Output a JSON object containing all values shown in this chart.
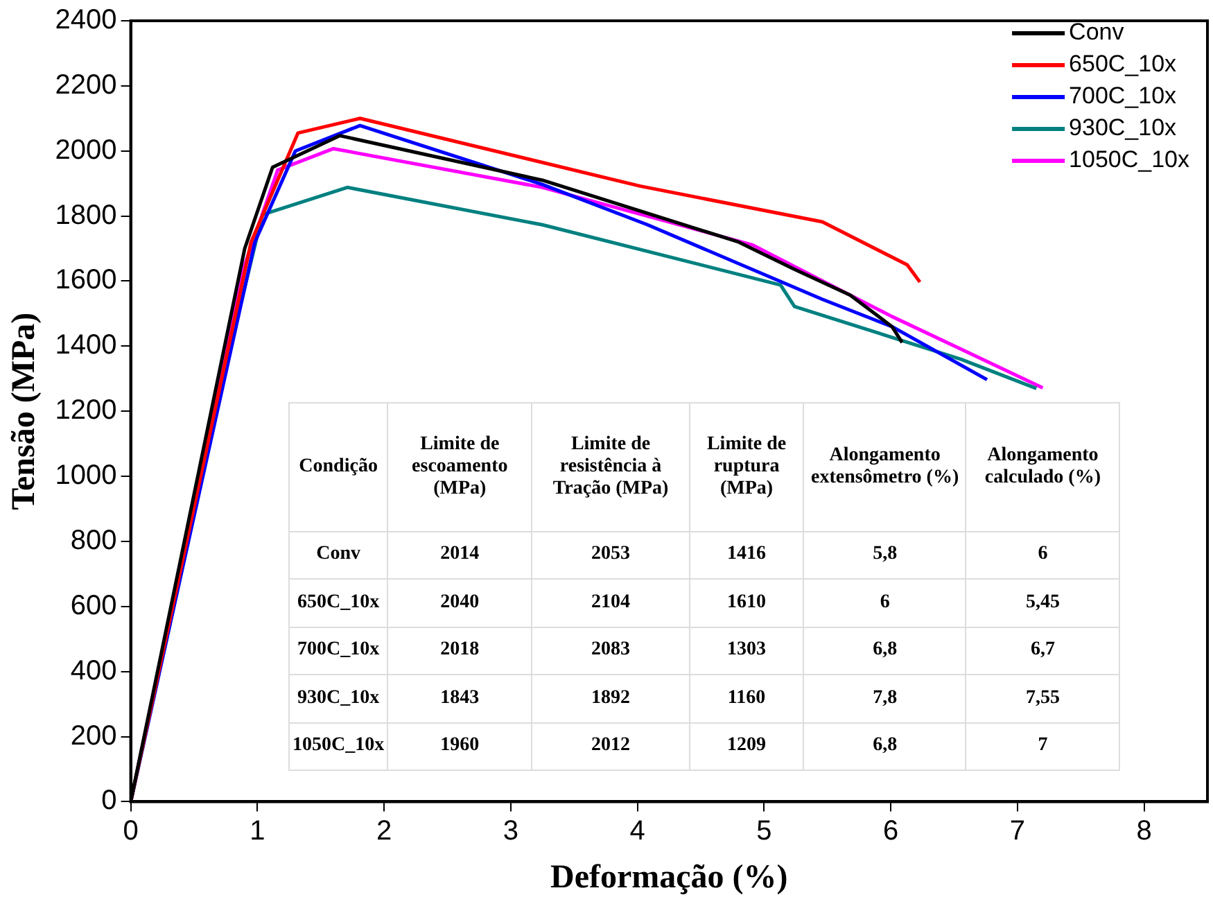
{
  "chart_data": {
    "type": "line",
    "xlabel": "Deformação (%)",
    "ylabel": "Tensão (MPa)",
    "xlim": [
      0,
      8.5
    ],
    "xticks": [
      0,
      1,
      2,
      3,
      4,
      5,
      6,
      7,
      8
    ],
    "ylim": [
      0,
      2400
    ],
    "yticks": [
      0,
      200,
      400,
      600,
      800,
      1000,
      1200,
      1400,
      1600,
      1800,
      2000,
      2200,
      2400
    ],
    "grid": false,
    "legend": "top right",
    "marker": "none",
    "line_style": "solid",
    "series": [
      {
        "name": "Conv",
        "color": "#000000",
        "x": [
          0,
          0.9,
          1.12,
          1.65,
          3.25,
          4.8,
          5.24,
          5.68,
          6.01,
          6.09
        ],
        "values": [
          0,
          1700,
          1950,
          2047,
          1910,
          1720,
          1636,
          1557,
          1460,
          1411
        ]
      },
      {
        "name": "650C_10x",
        "color": "#ff0000",
        "x": [
          0,
          0.95,
          1.32,
          1.81,
          4.02,
          5.46,
          6.13,
          6.23
        ],
        "values": [
          0,
          1720,
          2055,
          2100,
          1892,
          1782,
          1650,
          1597
        ]
      },
      {
        "name": "700C_10x",
        "color": "#0000ff",
        "x": [
          0,
          0.98,
          1.3,
          1.81,
          3.25,
          4.08,
          5.46,
          6.01,
          6.76
        ],
        "values": [
          0,
          1720,
          2000,
          2078,
          1897,
          1773,
          1544,
          1460,
          1297
        ]
      },
      {
        "name": "930C_10x",
        "color": "#008080",
        "x": [
          0,
          0.85,
          1.04,
          1.71,
          3.25,
          5.13,
          5.24,
          6.56,
          7.15
        ],
        "values": [
          0,
          1500,
          1804,
          1888,
          1773,
          1588,
          1522,
          1359,
          1270
        ]
      },
      {
        "name": "1050C_10x",
        "color": "#ff00ff",
        "x": [
          0,
          0.9,
          1.16,
          1.6,
          3.25,
          4.91,
          6.01,
          7.2
        ],
        "values": [
          0,
          1650,
          1941,
          2007,
          1888,
          1711,
          1491,
          1272
        ]
      }
    ],
    "annotations": [
      "Condição",
      "Limite de escoamento (MPa)",
      "Limite de resistência à Tração (MPa)",
      "Limite de ruptura (MPa)",
      "Alongamento extensômetro (%)",
      "Alongamento calculado (%)",
      "Conv",
      "2014",
      "2053",
      "1416",
      "5,8",
      "6",
      "650C_10x",
      "2040",
      "2104",
      "1610",
      "6",
      "5,45",
      "700C_10x",
      "2018",
      "2083",
      "1303",
      "6,8",
      "6,7",
      "930C_10x",
      "1843",
      "1892",
      "1160",
      "7,8",
      "7,55",
      "1050C_10x",
      "1960",
      "2012",
      "1209",
      "6,8",
      "7"
    ]
  }
}
